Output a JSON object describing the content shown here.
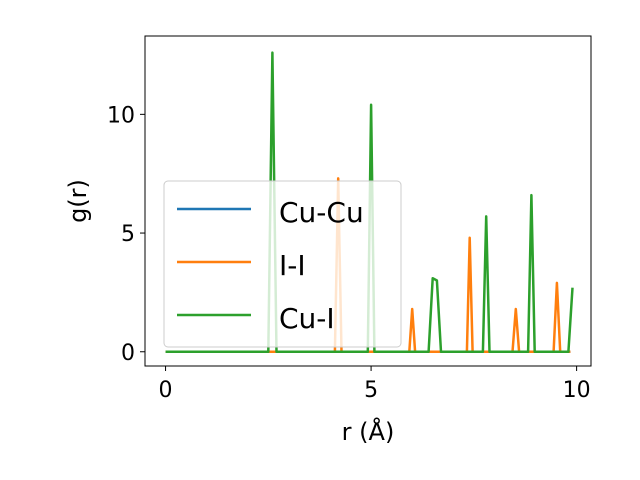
{
  "chart_data": {
    "type": "line",
    "xlabel": "r (Å)",
    "ylabel": "g(r)",
    "xlim": [
      -0.5,
      10.35
    ],
    "ylim": [
      -0.6,
      13.3
    ],
    "x_ticks": [
      0,
      5,
      10
    ],
    "y_ticks": [
      0,
      5,
      10
    ],
    "legend_position": "center-left",
    "grid": false,
    "series": [
      {
        "name": "Cu-Cu",
        "color": "#1f77b4",
        "points": [
          [
            0,
            0
          ],
          [
            9.85,
            0
          ]
        ]
      },
      {
        "name": "I-I",
        "color": "#ff7f0e",
        "points": [
          [
            0,
            0
          ],
          [
            4.12,
            0
          ],
          [
            4.2,
            7.3
          ],
          [
            4.28,
            0
          ],
          [
            5.93,
            0
          ],
          [
            6.0,
            1.8
          ],
          [
            6.07,
            0
          ],
          [
            7.33,
            0
          ],
          [
            7.4,
            4.8
          ],
          [
            7.47,
            0
          ],
          [
            8.44,
            0
          ],
          [
            8.52,
            1.8
          ],
          [
            8.6,
            0
          ],
          [
            9.44,
            0
          ],
          [
            9.52,
            2.9
          ],
          [
            9.6,
            0
          ],
          [
            9.85,
            0
          ]
        ]
      },
      {
        "name": "Cu-I",
        "color": "#2ca02c",
        "points": [
          [
            0,
            0
          ],
          [
            2.5,
            0
          ],
          [
            2.6,
            12.6
          ],
          [
            2.7,
            0
          ],
          [
            4.92,
            0
          ],
          [
            5.0,
            10.4
          ],
          [
            5.08,
            0
          ],
          [
            6.4,
            0
          ],
          [
            6.5,
            3.1
          ],
          [
            6.6,
            3.0
          ],
          [
            6.7,
            0
          ],
          [
            7.72,
            0
          ],
          [
            7.8,
            5.7
          ],
          [
            7.88,
            0
          ],
          [
            8.82,
            0
          ],
          [
            8.9,
            6.6
          ],
          [
            8.98,
            0
          ],
          [
            9.8,
            0
          ],
          [
            9.9,
            2.7
          ]
        ]
      }
    ]
  }
}
